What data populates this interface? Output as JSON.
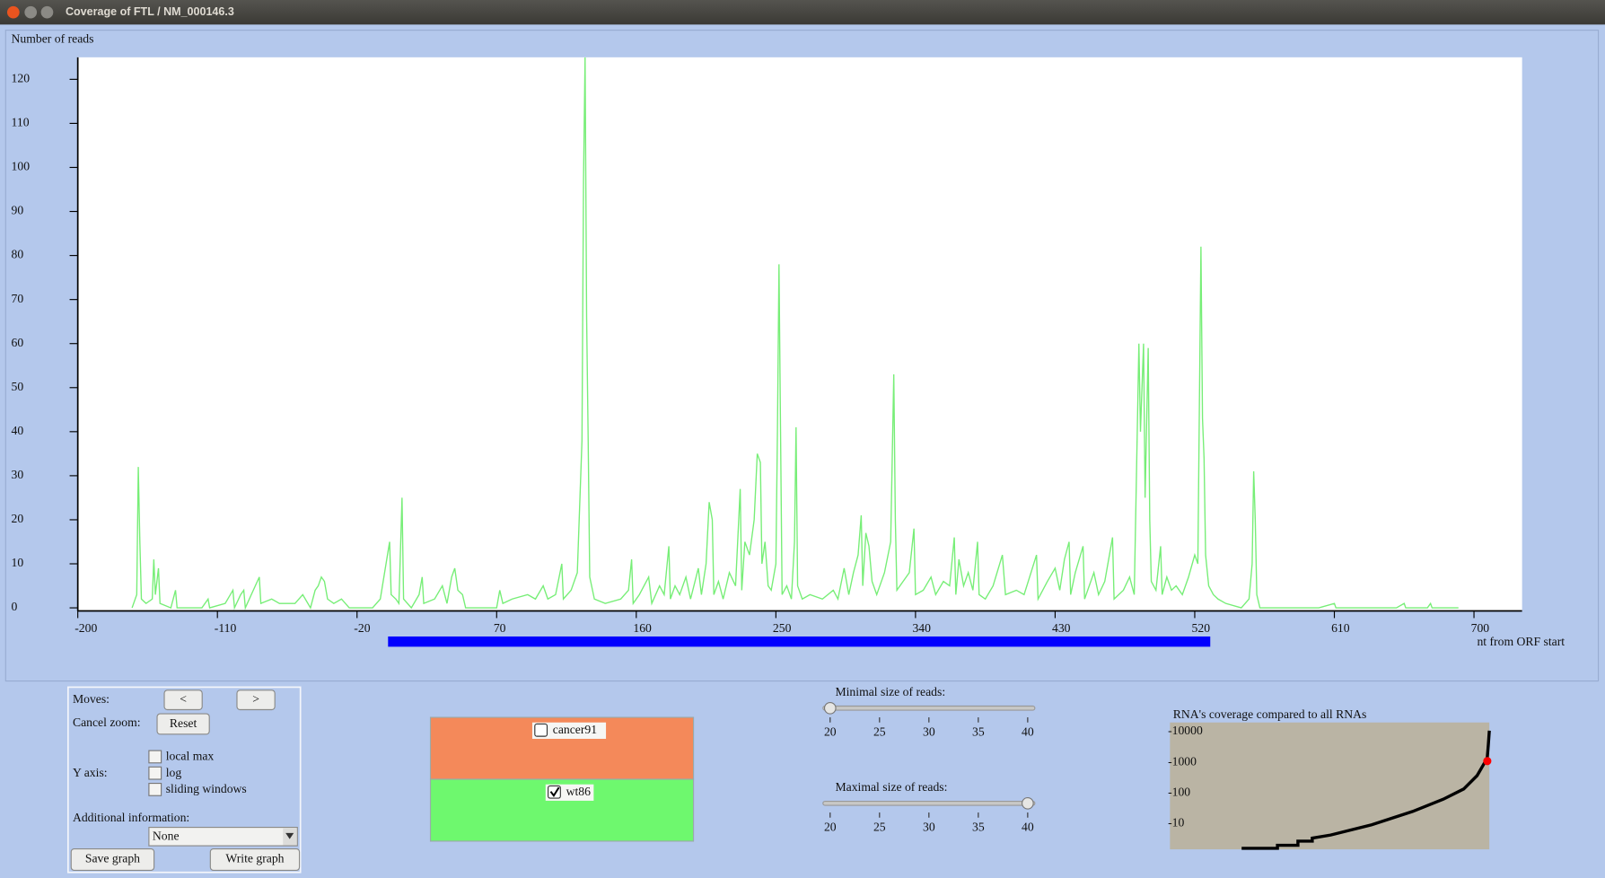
{
  "window": {
    "title": "Coverage of FTL / NM_000146.3"
  },
  "chart_data": {
    "type": "line",
    "y_label": "Number of reads",
    "x_label": "nt from ORF start",
    "xlim": [
      -200,
      731
    ],
    "ylim": [
      0,
      125
    ],
    "xticks": [
      -200,
      -110,
      -20,
      70,
      160,
      250,
      340,
      430,
      520,
      610,
      700
    ],
    "yticks": [
      0,
      10,
      20,
      30,
      40,
      50,
      60,
      70,
      80,
      90,
      100,
      110,
      120
    ],
    "color": "#77ee77",
    "highlight": {
      "start": 0,
      "end": 530,
      "color": "#0000ff"
    },
    "x": [
      -165,
      -162,
      -161,
      -160,
      -159,
      -156,
      -152,
      -151,
      -150,
      -148,
      -147,
      -140,
      -137,
      -136,
      -120,
      -116,
      -115,
      -105,
      -100,
      -99,
      -95,
      -93,
      -92,
      -83,
      -82,
      -75,
      -70,
      -60,
      -55,
      -50,
      -47,
      -45,
      -43,
      -41,
      -39,
      -35,
      -30,
      -25,
      -10,
      -5,
      1,
      2,
      5,
      7,
      9,
      10,
      15,
      20,
      22,
      23,
      30,
      35,
      38,
      41,
      43,
      45,
      48,
      50,
      60,
      70,
      72,
      74,
      80,
      90,
      95,
      100,
      103,
      108,
      112,
      113,
      118,
      122,
      125,
      126,
      127,
      128,
      129,
      130,
      133,
      140,
      150,
      155,
      157,
      158,
      162,
      168,
      170,
      175,
      178,
      181,
      182,
      185,
      188,
      192,
      195,
      200,
      202,
      205,
      207,
      209,
      210,
      213,
      216,
      220,
      224,
      227,
      228,
      230,
      233,
      236,
      238,
      240,
      241,
      243,
      245,
      247,
      250,
      251,
      252,
      253,
      254,
      257,
      260,
      262,
      263,
      264,
      267,
      272,
      280,
      287,
      290,
      294,
      297,
      300,
      303,
      305,
      306,
      308,
      310,
      312,
      315,
      320,
      324,
      326,
      327,
      328,
      332,
      336,
      339,
      340,
      345,
      350,
      353,
      358,
      362,
      365,
      366,
      368,
      371,
      374,
      377,
      380,
      381,
      385,
      390,
      396,
      398,
      405,
      410,
      418,
      419,
      425,
      430,
      433,
      436,
      439,
      440,
      443,
      448,
      449,
      455,
      458,
      462,
      467,
      468,
      474,
      478,
      481,
      484,
      485,
      487,
      488,
      490,
      491,
      492,
      495,
      498,
      499,
      502,
      505,
      508,
      512,
      516,
      520,
      522,
      524,
      525,
      526,
      527,
      529,
      532,
      535,
      540,
      550,
      555,
      557,
      558,
      559,
      560,
      562,
      600,
      610,
      611,
      650,
      655,
      656,
      670,
      672,
      673,
      690
    ],
    "values": [
      0,
      3,
      32,
      15,
      2,
      1,
      2,
      11,
      3,
      9,
      1,
      0,
      4,
      0,
      0,
      2,
      0,
      1,
      4,
      0,
      3,
      4,
      0,
      7,
      1,
      2,
      1,
      1,
      3,
      0,
      4,
      5,
      7,
      6,
      2,
      1,
      2,
      0,
      0,
      2,
      15,
      3,
      2,
      1,
      25,
      2,
      0,
      3,
      7,
      1,
      2,
      5,
      1,
      7,
      9,
      4,
      3,
      0,
      0,
      0,
      4,
      1,
      2,
      3,
      2,
      5,
      2,
      3,
      10,
      2,
      4,
      8,
      38,
      97,
      125,
      66,
      38,
      7,
      2,
      1,
      2,
      4,
      11,
      1,
      3,
      7,
      1,
      5,
      3,
      14,
      2,
      5,
      3,
      7,
      2,
      9,
      3,
      10,
      24,
      20,
      3,
      6,
      2,
      8,
      5,
      27,
      4,
      15,
      12,
      20,
      35,
      33,
      10,
      15,
      5,
      4,
      10,
      40,
      78,
      40,
      3,
      5,
      2,
      15,
      41,
      5,
      2,
      3,
      2,
      4,
      2,
      9,
      3,
      8,
      12,
      21,
      5,
      17,
      14,
      6,
      3,
      8,
      15,
      53,
      20,
      4,
      6,
      8,
      18,
      3,
      4,
      7,
      3,
      6,
      5,
      16,
      3,
      11,
      5,
      8,
      4,
      15,
      3,
      2,
      5,
      12,
      3,
      4,
      3,
      12,
      2,
      6,
      9,
      4,
      11,
      15,
      3,
      8,
      14,
      2,
      8,
      3,
      6,
      16,
      2,
      4,
      7,
      3,
      60,
      40,
      60,
      25,
      59,
      20,
      6,
      4,
      14,
      3,
      7,
      4,
      5,
      3,
      7,
      12,
      10,
      82,
      43,
      34,
      12,
      5,
      3,
      2,
      1,
      0,
      2,
      10,
      31,
      20,
      3,
      0,
      0,
      1,
      0,
      0,
      1,
      0,
      0,
      1,
      0,
      0
    ]
  },
  "controls": {
    "moves_label": "Moves:",
    "prev": "<",
    "next": ">",
    "cancel_zoom_label": "Cancel zoom:",
    "reset": "Reset",
    "y_axis_label": "Y axis:",
    "y_axis_options": [
      {
        "label": "local max",
        "checked": false
      },
      {
        "label": "log",
        "checked": false
      },
      {
        "label": "sliding windows",
        "checked": false
      }
    ],
    "additional_info_label": "Additional information:",
    "additional_info_value": "None",
    "save": "Save graph",
    "write": "Write graph"
  },
  "samples": [
    {
      "name": "cancer91",
      "checked": false,
      "color": "#f4895a"
    },
    {
      "name": "wt86",
      "checked": true,
      "color": "#6ef86e"
    }
  ],
  "sliders": [
    {
      "label": "Minimal size of reads:",
      "ticks": [
        20,
        25,
        30,
        35,
        40
      ],
      "value": 20
    },
    {
      "label": "Maximal size of reads:",
      "ticks": [
        20,
        25,
        30,
        35,
        40
      ],
      "value": 40
    }
  ],
  "mini_chart": {
    "title": "RNA's coverage compared to all RNAs",
    "yticks": [
      -10000,
      -1000,
      -100,
      -10
    ],
    "marker": {
      "value": -1100,
      "color": "#ff0000"
    }
  }
}
